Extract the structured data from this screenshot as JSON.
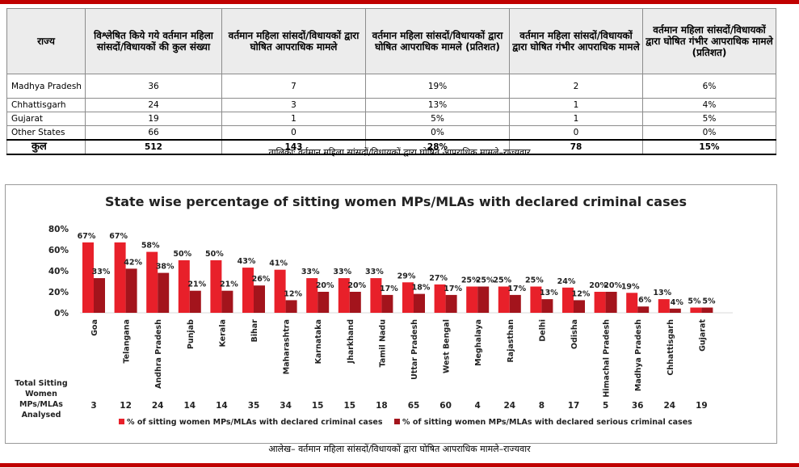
{
  "table": {
    "headers": [
      "राज्य",
      "विश्लेषित किये गये वर्तमान महिला सांसदों/विधायकों की कुल संख्या",
      "वर्तमान महिला सांसदों/विधायकों द्वारा घोषित आपराधिक मामले",
      "वर्तमान महिला सांसदों/विधायकों द्वारा घोषित आपराधिक मामले (प्रतिशत)",
      "वर्तमान महिला सांसदों/विधायकों द्वारा घोषित गंभीर आपराधिक मामले",
      "वर्तमान महिला सांसदों/विधायकों द्वारा घोषित गंभीर आपराधिक मामले (प्रतिशत)"
    ],
    "rows": [
      [
        "Madhya Pradesh",
        "36",
        "7",
        "19%",
        "2",
        "6%"
      ],
      [
        "Chhattisgarh",
        "24",
        "3",
        "13%",
        "1",
        "4%"
      ],
      [
        "Gujarat",
        "19",
        "1",
        "5%",
        "1",
        "5%"
      ],
      [
        "Other States",
        "66",
        "0",
        "0%",
        "0",
        "0%"
      ]
    ],
    "total": [
      "कुल",
      "512",
      "143",
      "28%",
      "78",
      "15%"
    ],
    "caption": "तालिकाः वर्तमान महिला सांसदों/विधायकों द्वारा घोषित आपराधिक मामले–राज्यवार"
  },
  "chart_data": {
    "type": "bar",
    "title": "State wise percentage of sitting women MPs/MLAs with declared criminal cases",
    "categories": [
      "Goa",
      "Telangana",
      "Andhra Pradesh",
      "Punjab",
      "Kerala",
      "Bihar",
      "Maharashtra",
      "Karnataka",
      "Jharkhand",
      "Tamil Nadu",
      "Uttar Pradesh",
      "West Bengal",
      "Meghalaya",
      "Rajasthan",
      "Delhi",
      "Odisha",
      "Himachal Pradesh",
      "Madhya Pradesh",
      "Chhattisgarh",
      "Gujarat"
    ],
    "series": [
      {
        "name": "% of sitting women MPs/MLAs with declared criminal cases",
        "values": [
          67,
          67,
          58,
          50,
          50,
          43,
          41,
          33,
          33,
          33,
          29,
          27,
          25,
          25,
          25,
          24,
          20,
          19,
          13,
          5
        ],
        "color": "#e8202a"
      },
      {
        "name": "% of sitting women MPs/MLAs with declared serious criminal cases",
        "values": [
          33,
          42,
          38,
          21,
          21,
          26,
          12,
          20,
          20,
          17,
          18,
          17,
          25,
          17,
          13,
          12,
          20,
          6,
          4,
          5
        ],
        "color": "#a3141c"
      }
    ],
    "ylim": [
      0,
      80
    ],
    "yticks": [
      "0%",
      "20%",
      "40%",
      "60%",
      "80%"
    ],
    "ytick_values": [
      0,
      20,
      40,
      60,
      80
    ],
    "row_label": "Total Sitting Women MPs/MLAs Analysed",
    "row_values": [
      "3",
      "12",
      "24",
      "14",
      "14",
      "35",
      "34",
      "15",
      "15",
      "18",
      "65",
      "60",
      "4",
      "24",
      "8",
      "17",
      "5",
      "36",
      "24",
      "19"
    ],
    "legend_position": "bottom",
    "grid": false
  },
  "chart_caption": "आलेख– वर्तमान महिला सांसदों/विधायकों द्वारा घोषित आपराधिक मामले–राज्यवार"
}
